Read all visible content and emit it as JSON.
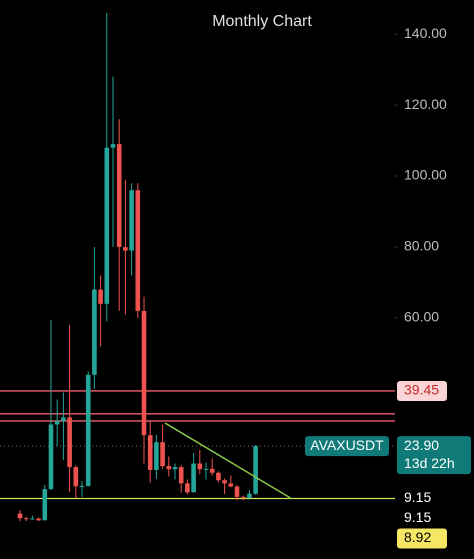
{
  "chart_data": {
    "type": "candlestick",
    "title": "Monthly Chart",
    "up_color": "#26a69a",
    "down_color": "#ef5350",
    "ohlc": {
      "open": [
        4.9,
        3.6,
        3.4,
        3.5,
        3.0,
        11.8,
        30,
        31,
        32,
        18,
        12.6,
        12.7,
        44,
        68,
        64,
        108,
        109,
        80,
        79,
        96,
        62,
        27,
        17.2,
        25,
        18.3,
        17.4,
        18,
        13.4,
        10.9,
        19,
        17.4,
        17.5,
        16.4,
        14.3,
        13.4,
        12.5,
        9.6,
        9.3,
        10.5
      ],
      "high": [
        5.9,
        4.0,
        4.3,
        3.8,
        13.0,
        59.4,
        37,
        39,
        58,
        18.5,
        14,
        45,
        80,
        72,
        146,
        128,
        116,
        99,
        98,
        98,
        66,
        31,
        27,
        30,
        21,
        19,
        18.5,
        14.5,
        22,
        22.8,
        19.3,
        20.4,
        16.8,
        14.8,
        15.6,
        13,
        10,
        11.6,
        24.2
      ],
      "low": [
        2.8,
        2.8,
        3.2,
        2.8,
        3.0,
        11.5,
        24,
        20,
        10.9,
        9.3,
        9.6,
        12.5,
        40,
        52,
        59,
        80,
        62,
        61,
        72,
        60,
        19,
        13.6,
        14.7,
        17.5,
        15.4,
        14.5,
        10.8,
        10.3,
        10.8,
        16,
        14.5,
        15.6,
        13.7,
        10.4,
        12.3,
        8.7,
        8.6,
        8.8,
        10.2
      ],
      "close": [
        3.6,
        3.4,
        3.5,
        3.0,
        11.8,
        30,
        31,
        32,
        18,
        12.6,
        12.7,
        44,
        68,
        64,
        108,
        109,
        80,
        79,
        96,
        62,
        27,
        17.2,
        25,
        18.3,
        17.4,
        18,
        13.4,
        10.9,
        19,
        17.4,
        17.5,
        16.4,
        14.3,
        13.4,
        12.5,
        9.6,
        9.3,
        10.5,
        23.9
      ]
    },
    "ylim": [
      -7.9,
      149.6
    ],
    "yticks": [
      {
        "value": 140,
        "label": "140.00"
      },
      {
        "value": 120,
        "label": "120.00"
      },
      {
        "value": 100,
        "label": "100.00"
      },
      {
        "value": 80,
        "label": "80.00"
      },
      {
        "value": 60,
        "label": "60.00"
      }
    ],
    "levels": [
      {
        "value": 39.45,
        "color": "#f0616d"
      },
      {
        "value": 33.0,
        "color": "#f0616d"
      },
      {
        "value": 31.0,
        "color": "#f0616d"
      },
      {
        "value": 9.15,
        "color": "#d4e157"
      }
    ],
    "last_price_line": 23.9,
    "trendline": {
      "x": [
        23.4,
        43.9
      ],
      "values": [
        30.4,
        9.0
      ],
      "color": "#8bc34a"
    },
    "badges": [
      {
        "price": 39.45,
        "bg": "#f9d5d8",
        "fg": "#c62828"
      },
      {
        "price": {
          "value": 23.9,
          "label": "23.90"
        },
        "countdown": "13d 22h",
        "symbol": "AVAXUSDT",
        "bg": "#0f7a78",
        "fg": "#ffffff"
      },
      {
        "price": {
          "value": 9.15,
          "label": "9.15"
        },
        "bg": "#000000",
        "fg": "#ffffff"
      },
      {
        "price": {
          "value": 9.15,
          "label": "9.15"
        },
        "bg": "#000000",
        "fg": "#ffffff"
      },
      {
        "price": 8.92,
        "bg": "#f5e663",
        "fg": "#000000"
      }
    ]
  }
}
